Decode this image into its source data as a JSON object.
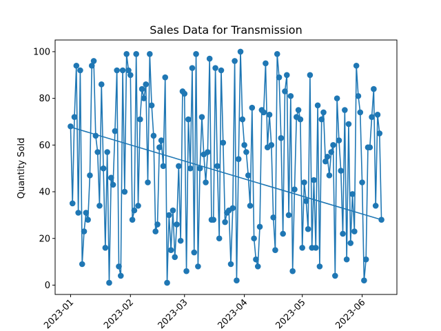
{
  "chart_data": {
    "type": "scatter",
    "title": "Sales Data for Transmission",
    "xlabel": "",
    "ylabel": "Quantity Sold",
    "x_type": "date",
    "x_ticks": [
      "2023-01",
      "2023-02",
      "2023-03",
      "2023-04",
      "2023-05",
      "2023-06"
    ],
    "x_tick_dates": [
      "2023-01-01",
      "2023-02-01",
      "2023-03-01",
      "2023-04-01",
      "2023-05-01",
      "2023-06-01"
    ],
    "xlim": [
      "2022-12-24",
      "2023-06-19"
    ],
    "y_ticks": [
      0,
      20,
      40,
      60,
      80,
      100
    ],
    "ylim": [
      -4,
      105
    ],
    "grid": false,
    "legend": false,
    "colors": {
      "series": "#1f77b4"
    },
    "series": [
      {
        "style": "line-with-markers",
        "x": [
          "2023-01-01",
          "2023-01-02",
          "2023-01-03",
          "2023-01-04",
          "2023-01-05",
          "2023-01-06",
          "2023-01-07",
          "2023-01-08",
          "2023-01-09",
          "2023-01-10",
          "2023-01-11",
          "2023-01-12",
          "2023-01-13",
          "2023-01-14",
          "2023-01-15",
          "2023-01-16",
          "2023-01-17",
          "2023-01-18",
          "2023-01-19",
          "2023-01-20",
          "2023-01-21",
          "2023-01-22",
          "2023-01-23",
          "2023-01-24",
          "2023-01-25",
          "2023-01-26",
          "2023-01-27",
          "2023-01-28",
          "2023-01-29",
          "2023-01-30",
          "2023-01-31",
          "2023-02-01",
          "2023-02-02",
          "2023-02-03",
          "2023-02-04",
          "2023-02-05",
          "2023-02-06",
          "2023-02-07",
          "2023-02-08",
          "2023-02-09",
          "2023-02-10",
          "2023-02-11",
          "2023-02-12",
          "2023-02-13",
          "2023-02-14",
          "2023-02-15",
          "2023-02-16",
          "2023-02-17",
          "2023-02-18",
          "2023-02-19",
          "2023-02-20",
          "2023-02-21",
          "2023-02-22",
          "2023-02-23",
          "2023-02-24",
          "2023-02-25",
          "2023-02-26",
          "2023-02-27",
          "2023-02-28",
          "2023-03-01",
          "2023-03-02",
          "2023-03-03",
          "2023-03-04",
          "2023-03-05",
          "2023-03-06",
          "2023-03-07",
          "2023-03-08",
          "2023-03-09",
          "2023-03-10",
          "2023-03-11",
          "2023-03-12",
          "2023-03-13",
          "2023-03-14",
          "2023-03-15",
          "2023-03-16",
          "2023-03-17",
          "2023-03-18",
          "2023-03-19",
          "2023-03-20",
          "2023-03-21",
          "2023-03-22",
          "2023-03-23",
          "2023-03-24",
          "2023-03-25",
          "2023-03-26",
          "2023-03-27",
          "2023-03-28",
          "2023-03-29",
          "2023-03-30",
          "2023-03-31",
          "2023-04-01",
          "2023-04-02",
          "2023-04-03",
          "2023-04-04",
          "2023-04-05",
          "2023-04-06",
          "2023-04-07",
          "2023-04-08",
          "2023-04-09",
          "2023-04-10",
          "2023-04-11",
          "2023-04-12",
          "2023-04-13",
          "2023-04-14",
          "2023-04-15",
          "2023-04-16",
          "2023-04-17",
          "2023-04-18",
          "2023-04-19",
          "2023-04-20",
          "2023-04-21",
          "2023-04-22",
          "2023-04-23",
          "2023-04-24",
          "2023-04-25",
          "2023-04-26",
          "2023-04-27",
          "2023-04-28",
          "2023-04-29",
          "2023-04-30",
          "2023-05-01",
          "2023-05-02",
          "2023-05-03",
          "2023-05-04",
          "2023-05-05",
          "2023-05-06",
          "2023-05-07",
          "2023-05-08",
          "2023-05-09",
          "2023-05-10",
          "2023-05-11",
          "2023-05-12",
          "2023-05-13",
          "2023-05-14",
          "2023-05-15",
          "2023-05-16",
          "2023-05-17",
          "2023-05-18",
          "2023-05-19",
          "2023-05-20",
          "2023-05-21",
          "2023-05-22",
          "2023-05-23",
          "2023-05-24",
          "2023-05-25",
          "2023-05-26",
          "2023-05-27",
          "2023-05-28",
          "2023-05-29",
          "2023-05-30",
          "2023-05-31",
          "2023-06-01",
          "2023-06-02",
          "2023-06-03",
          "2023-06-04",
          "2023-06-05",
          "2023-06-06",
          "2023-06-07",
          "2023-06-08",
          "2023-06-09",
          "2023-06-10",
          "2023-06-11"
        ],
        "y": [
          68,
          35,
          72,
          94,
          31,
          92,
          9,
          23,
          31,
          28,
          47,
          94,
          96,
          64,
          57,
          34,
          86,
          50,
          16,
          57,
          1,
          46,
          43,
          66,
          92,
          8,
          4,
          92,
          40,
          99,
          92,
          90,
          28,
          32,
          99,
          34,
          71,
          84,
          80,
          86,
          44,
          99,
          77,
          64,
          23,
          26,
          59,
          62,
          51,
          89,
          1,
          30,
          15,
          32,
          12,
          26,
          51,
          19,
          83,
          82,
          6,
          71,
          50,
          93,
          14,
          99,
          8,
          50,
          72,
          56,
          44,
          57,
          97,
          28,
          28,
          93,
          51,
          20,
          92,
          61,
          27,
          31,
          32,
          9,
          33,
          96,
          2,
          54,
          100,
          71,
          60,
          57,
          47,
          34,
          76,
          20,
          11,
          8,
          25,
          75,
          74,
          95,
          59,
          73,
          60,
          29,
          15,
          99,
          89,
          63,
          22,
          83,
          90,
          30,
          81,
          6,
          41,
          72,
          75,
          71,
          16,
          44,
          36,
          24,
          90,
          16,
          45,
          16,
          77,
          8,
          71,
          74,
          53,
          55,
          47,
          57,
          60,
          4,
          80,
          62,
          49,
          22,
          75,
          11,
          69,
          18,
          39,
          23,
          94,
          81,
          74,
          44,
          2,
          11,
          59,
          59,
          72,
          84,
          34,
          73,
          65,
          28
        ]
      },
      {
        "style": "line",
        "x": [
          "2023-01-01",
          "2023-06-11"
        ],
        "y": [
          67.7,
          28.0
        ]
      }
    ]
  }
}
